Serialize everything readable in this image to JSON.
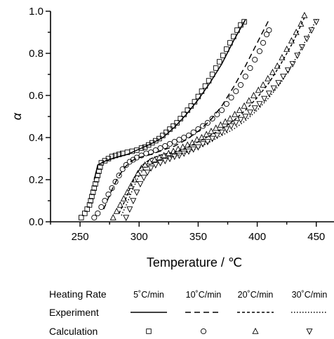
{
  "chart_data": {
    "type": "scatter",
    "xlabel": "Temperature / ℃",
    "ylabel": "α",
    "xlim": [
      225,
      465
    ],
    "ylim": [
      0.0,
      1.0
    ],
    "x_ticks": [
      250,
      300,
      350,
      400,
      450
    ],
    "y_ticks": [
      "0.0",
      "0.2",
      "0.4",
      "0.6",
      "0.8",
      "1.0"
    ],
    "grid": false,
    "legend": {
      "placement": "bottom",
      "header_label": "Heating Rate",
      "rates": [
        "5˚C/min",
        "10˚C/min",
        "20˚C/min",
        "30˚C/min"
      ],
      "experiment_label": "Experiment",
      "calculation_label": "Calculation"
    },
    "series": [
      {
        "name": "5˚C/min",
        "line_style": "solid",
        "marker": "square",
        "experiment": [
          [
            262,
            0.2
          ],
          [
            265,
            0.27
          ],
          [
            272,
            0.29
          ],
          [
            280,
            0.305
          ],
          [
            290,
            0.32
          ],
          [
            300,
            0.345
          ],
          [
            310,
            0.37
          ],
          [
            320,
            0.4
          ],
          [
            330,
            0.45
          ],
          [
            340,
            0.51
          ],
          [
            350,
            0.58
          ],
          [
            360,
            0.66
          ],
          [
            370,
            0.75
          ],
          [
            380,
            0.86
          ],
          [
            390,
            0.96
          ]
        ],
        "calculation": [
          [
            251,
            0.02
          ],
          [
            254,
            0.04
          ],
          [
            256,
            0.06
          ],
          [
            258,
            0.08
          ],
          [
            259,
            0.1
          ],
          [
            260,
            0.12
          ],
          [
            261,
            0.14
          ],
          [
            262,
            0.16
          ],
          [
            263,
            0.18
          ],
          [
            264,
            0.2
          ],
          [
            265,
            0.22
          ],
          [
            266,
            0.24
          ],
          [
            267,
            0.26
          ],
          [
            268,
            0.28
          ],
          [
            271,
            0.29
          ],
          [
            274,
            0.3
          ],
          [
            277,
            0.31
          ],
          [
            280,
            0.315
          ],
          [
            283,
            0.32
          ],
          [
            286,
            0.325
          ],
          [
            290,
            0.33
          ],
          [
            294,
            0.335
          ],
          [
            298,
            0.34
          ],
          [
            302,
            0.35
          ],
          [
            305,
            0.355
          ],
          [
            308,
            0.365
          ],
          [
            311,
            0.375
          ],
          [
            314,
            0.385
          ],
          [
            317,
            0.395
          ],
          [
            320,
            0.41
          ],
          [
            323,
            0.425
          ],
          [
            326,
            0.44
          ],
          [
            329,
            0.455
          ],
          [
            332,
            0.47
          ],
          [
            335,
            0.49
          ],
          [
            338,
            0.51
          ],
          [
            341,
            0.53
          ],
          [
            344,
            0.55
          ],
          [
            347,
            0.57
          ],
          [
            350,
            0.595
          ],
          [
            353,
            0.62
          ],
          [
            356,
            0.645
          ],
          [
            359,
            0.67
          ],
          [
            362,
            0.7
          ],
          [
            365,
            0.73
          ],
          [
            368,
            0.76
          ],
          [
            371,
            0.79
          ],
          [
            374,
            0.82
          ],
          [
            377,
            0.85
          ],
          [
            380,
            0.88
          ],
          [
            383,
            0.91
          ],
          [
            386,
            0.935
          ],
          [
            389,
            0.95
          ]
        ]
      },
      {
        "name": "10˚C/min",
        "line_style": "dashed",
        "marker": "circle",
        "experiment": [
          [
            270,
            0.06
          ],
          [
            276,
            0.14
          ],
          [
            282,
            0.21
          ],
          [
            288,
            0.26
          ],
          [
            294,
            0.29
          ],
          [
            300,
            0.305
          ],
          [
            310,
            0.32
          ],
          [
            320,
            0.34
          ],
          [
            330,
            0.36
          ],
          [
            340,
            0.39
          ],
          [
            350,
            0.43
          ],
          [
            360,
            0.48
          ],
          [
            370,
            0.55
          ],
          [
            380,
            0.64
          ],
          [
            390,
            0.74
          ],
          [
            400,
            0.85
          ],
          [
            410,
            0.96
          ]
        ],
        "calculation": [
          [
            262,
            0.02
          ],
          [
            265,
            0.04
          ],
          [
            268,
            0.07
          ],
          [
            271,
            0.1
          ],
          [
            274,
            0.13
          ],
          [
            277,
            0.16
          ],
          [
            280,
            0.19
          ],
          [
            283,
            0.22
          ],
          [
            286,
            0.25
          ],
          [
            289,
            0.27
          ],
          [
            292,
            0.285
          ],
          [
            295,
            0.295
          ],
          [
            298,
            0.305
          ],
          [
            302,
            0.315
          ],
          [
            306,
            0.325
          ],
          [
            310,
            0.33
          ],
          [
            314,
            0.34
          ],
          [
            318,
            0.35
          ],
          [
            322,
            0.36
          ],
          [
            326,
            0.37
          ],
          [
            330,
            0.38
          ],
          [
            334,
            0.39
          ],
          [
            338,
            0.4
          ],
          [
            342,
            0.41
          ],
          [
            346,
            0.425
          ],
          [
            350,
            0.44
          ],
          [
            354,
            0.455
          ],
          [
            358,
            0.47
          ],
          [
            362,
            0.49
          ],
          [
            366,
            0.51
          ],
          [
            370,
            0.53
          ],
          [
            374,
            0.56
          ],
          [
            378,
            0.59
          ],
          [
            382,
            0.62
          ],
          [
            386,
            0.65
          ],
          [
            390,
            0.69
          ],
          [
            394,
            0.73
          ],
          [
            398,
            0.77
          ],
          [
            402,
            0.81
          ],
          [
            405,
            0.85
          ],
          [
            408,
            0.89
          ],
          [
            410,
            0.91
          ]
        ]
      },
      {
        "name": "20˚C/min",
        "line_style": "short-dashed",
        "marker": "triangle-up",
        "experiment": [
          [
            283,
            0.04
          ],
          [
            288,
            0.1
          ],
          [
            293,
            0.17
          ],
          [
            298,
            0.23
          ],
          [
            303,
            0.27
          ],
          [
            310,
            0.3
          ],
          [
            320,
            0.32
          ],
          [
            330,
            0.33
          ],
          [
            340,
            0.35
          ],
          [
            350,
            0.38
          ],
          [
            360,
            0.41
          ],
          [
            370,
            0.44
          ],
          [
            380,
            0.48
          ],
          [
            390,
            0.53
          ],
          [
            400,
            0.59
          ],
          [
            410,
            0.66
          ],
          [
            420,
            0.75
          ],
          [
            430,
            0.85
          ],
          [
            440,
            0.97
          ]
        ],
        "calculation": [
          [
            278,
            0.02
          ],
          [
            281,
            0.05
          ],
          [
            284,
            0.08
          ],
          [
            287,
            0.11
          ],
          [
            290,
            0.14
          ],
          [
            293,
            0.17
          ],
          [
            296,
            0.2
          ],
          [
            299,
            0.23
          ],
          [
            302,
            0.255
          ],
          [
            305,
            0.27
          ],
          [
            309,
            0.285
          ],
          [
            313,
            0.295
          ],
          [
            317,
            0.305
          ],
          [
            321,
            0.315
          ],
          [
            325,
            0.325
          ],
          [
            329,
            0.335
          ],
          [
            333,
            0.345
          ],
          [
            337,
            0.355
          ],
          [
            341,
            0.365
          ],
          [
            345,
            0.375
          ],
          [
            349,
            0.39
          ],
          [
            353,
            0.4
          ],
          [
            357,
            0.415
          ],
          [
            361,
            0.43
          ],
          [
            365,
            0.445
          ],
          [
            369,
            0.46
          ],
          [
            373,
            0.475
          ],
          [
            377,
            0.49
          ],
          [
            381,
            0.51
          ],
          [
            385,
            0.53
          ],
          [
            389,
            0.55
          ],
          [
            393,
            0.575
          ],
          [
            397,
            0.6
          ],
          [
            401,
            0.625
          ],
          [
            405,
            0.65
          ],
          [
            409,
            0.68
          ],
          [
            413,
            0.71
          ],
          [
            417,
            0.74
          ],
          [
            421,
            0.78
          ],
          [
            425,
            0.82
          ],
          [
            429,
            0.86
          ],
          [
            433,
            0.9
          ],
          [
            437,
            0.94
          ],
          [
            440,
            0.98
          ]
        ]
      },
      {
        "name": "30˚C/min",
        "line_style": "dotted",
        "marker": "triangle-down",
        "experiment": [
          [
            285,
            0.03
          ],
          [
            290,
            0.09
          ],
          [
            295,
            0.16
          ],
          [
            300,
            0.22
          ],
          [
            305,
            0.26
          ],
          [
            312,
            0.28
          ],
          [
            320,
            0.3
          ],
          [
            330,
            0.31
          ],
          [
            340,
            0.33
          ],
          [
            350,
            0.35
          ],
          [
            360,
            0.38
          ],
          [
            370,
            0.41
          ],
          [
            380,
            0.44
          ],
          [
            390,
            0.48
          ],
          [
            400,
            0.53
          ],
          [
            410,
            0.59
          ],
          [
            420,
            0.66
          ],
          [
            430,
            0.75
          ],
          [
            440,
            0.85
          ],
          [
            450,
            0.96
          ]
        ],
        "calculation": [
          [
            289,
            0.02
          ],
          [
            292,
            0.06
          ],
          [
            295,
            0.1
          ],
          [
            298,
            0.14
          ],
          [
            301,
            0.18
          ],
          [
            304,
            0.21
          ],
          [
            307,
            0.235
          ],
          [
            310,
            0.255
          ],
          [
            314,
            0.27
          ],
          [
            318,
            0.28
          ],
          [
            322,
            0.29
          ],
          [
            326,
            0.3
          ],
          [
            330,
            0.31
          ],
          [
            334,
            0.315
          ],
          [
            338,
            0.325
          ],
          [
            342,
            0.335
          ],
          [
            346,
            0.345
          ],
          [
            350,
            0.355
          ],
          [
            354,
            0.37
          ],
          [
            358,
            0.38
          ],
          [
            362,
            0.395
          ],
          [
            366,
            0.41
          ],
          [
            370,
            0.425
          ],
          [
            374,
            0.44
          ],
          [
            378,
            0.455
          ],
          [
            382,
            0.47
          ],
          [
            386,
            0.485
          ],
          [
            390,
            0.5
          ],
          [
            394,
            0.52
          ],
          [
            398,
            0.54
          ],
          [
            402,
            0.56
          ],
          [
            406,
            0.585
          ],
          [
            410,
            0.61
          ],
          [
            414,
            0.635
          ],
          [
            418,
            0.66
          ],
          [
            422,
            0.69
          ],
          [
            426,
            0.72
          ],
          [
            430,
            0.75
          ],
          [
            434,
            0.79
          ],
          [
            438,
            0.83
          ],
          [
            442,
            0.87
          ],
          [
            446,
            0.91
          ],
          [
            450,
            0.95
          ]
        ]
      }
    ]
  }
}
